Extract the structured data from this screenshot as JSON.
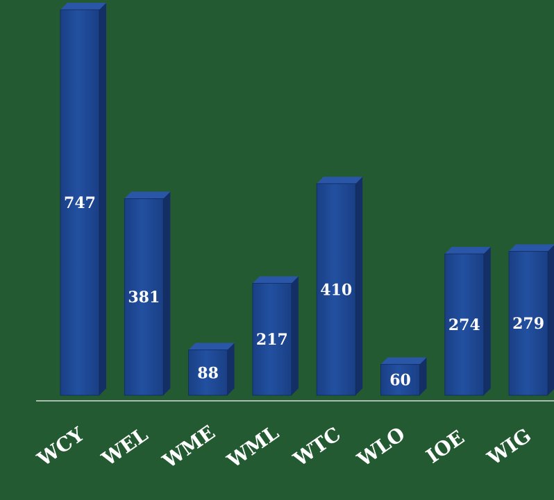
{
  "chart_data": {
    "type": "bar",
    "categories": [
      "WCY",
      "WEL",
      "WME",
      "WML",
      "WTC",
      "WLO",
      "IOE",
      "WIG"
    ],
    "values": [
      747,
      381,
      88,
      217,
      410,
      60,
      274,
      279
    ],
    "title": "",
    "xlabel": "",
    "ylabel": "",
    "ylim": [
      0,
      747
    ],
    "grid": false,
    "legend": "none",
    "colors": {
      "background": "#245a32",
      "bar_front": "#1d4590",
      "bar_side": "#142f66",
      "bar_top": "#2a56a8",
      "axis": "#d8e0d8",
      "text": "#ffffff"
    }
  }
}
